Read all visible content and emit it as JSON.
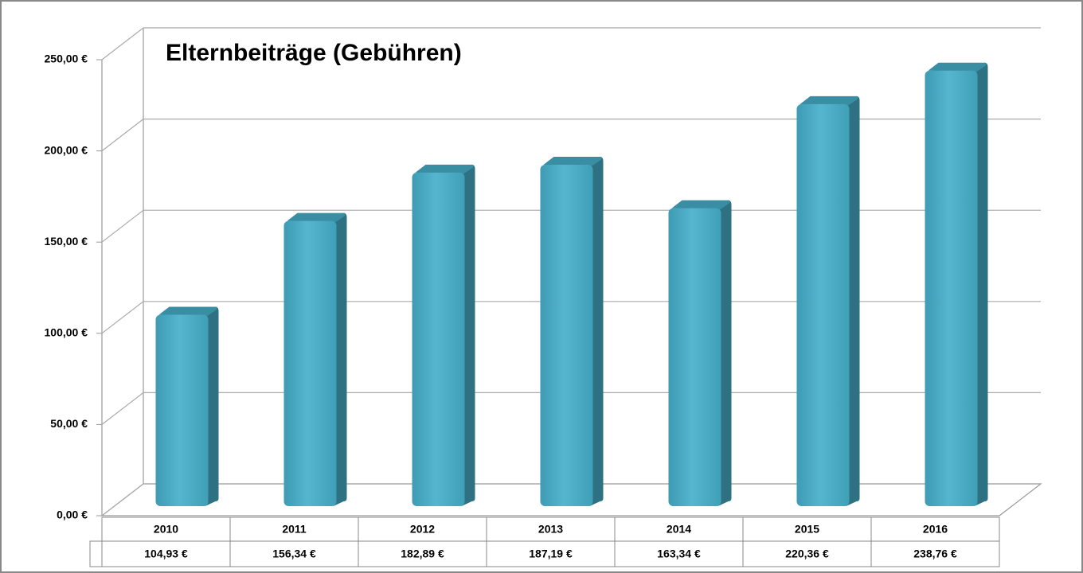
{
  "chart_data": {
    "type": "bar3d",
    "title": "Elternbeiträge (Gebühren)",
    "categories": [
      "2010",
      "2011",
      "2012",
      "2013",
      "2014",
      "2015",
      "2016"
    ],
    "values": [
      104.93,
      156.34,
      182.89,
      187.19,
      163.34,
      220.36,
      238.76
    ],
    "value_labels": [
      "104,93 €",
      "156,34 €",
      "182,89 €",
      "187,19 €",
      "163,34 €",
      "220,36 €",
      "238,76 €"
    ],
    "color": "#4bacc6",
    "ylim": [
      0,
      250
    ],
    "yticks": [
      {
        "value": 0,
        "label": "0,00 €"
      },
      {
        "value": 50,
        "label": "50,00 €"
      },
      {
        "value": 100,
        "label": "100,00 €"
      },
      {
        "value": 150,
        "label": "150,00 €"
      },
      {
        "value": 200,
        "label": "200,00 €"
      },
      {
        "value": 250,
        "label": "250,00 €"
      }
    ],
    "grid": true
  }
}
